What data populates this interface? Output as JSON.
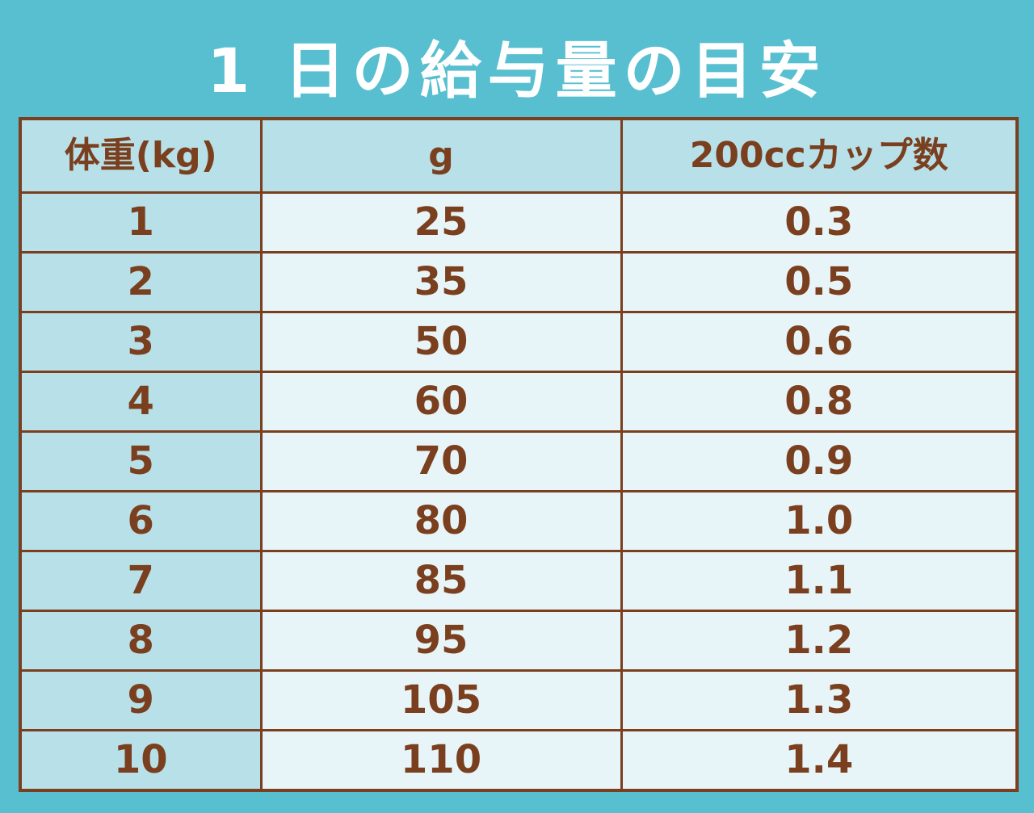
{
  "title": "1 日の給与量の目安",
  "table": {
    "headers": [
      "体重(kg)",
      "g",
      "200ccカップ数"
    ],
    "rows": [
      [
        "1",
        "25",
        "0.3"
      ],
      [
        "2",
        "35",
        "0.5"
      ],
      [
        "3",
        "50",
        "0.6"
      ],
      [
        "4",
        "60",
        "0.8"
      ],
      [
        "5",
        "70",
        "0.9"
      ],
      [
        "6",
        "80",
        "1.0"
      ],
      [
        "7",
        "85",
        "1.1"
      ],
      [
        "8",
        "95",
        "1.2"
      ],
      [
        "9",
        "105",
        "1.3"
      ],
      [
        "10",
        "110",
        "1.4"
      ]
    ]
  },
  "colors": {
    "background": "#57bfd0",
    "title_text": "#ffffff",
    "border_and_text": "#7a3f1e",
    "header_fill": "#b8e0e8",
    "first_column_fill": "#b8e0e8",
    "cell_fill": "#e8f5f8"
  }
}
